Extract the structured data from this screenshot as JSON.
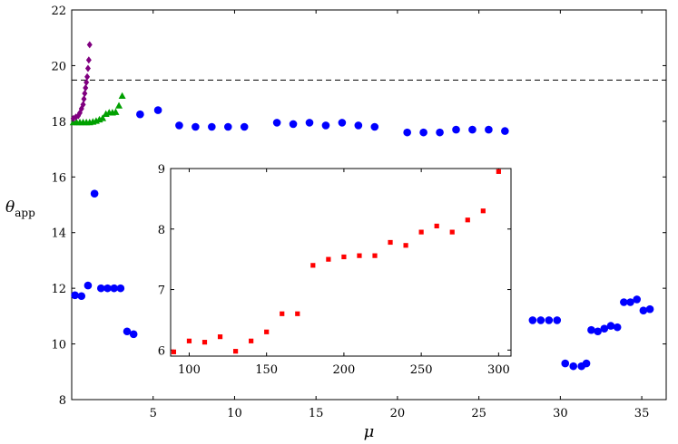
{
  "chart_data": [
    {
      "type": "scatter",
      "xlabel": "μ",
      "ylabel": "θ",
      "ylabel_subscript": "app",
      "xlim": [
        0,
        36.5
      ],
      "ylim": [
        8,
        22
      ],
      "xticks": [
        5,
        10,
        15,
        20,
        25,
        30,
        35
      ],
      "xtick_labels": [
        "5",
        "10",
        "15",
        "20",
        "25",
        "30",
        "35"
      ],
      "yticks": [
        8,
        10,
        12,
        14,
        16,
        18,
        20,
        22
      ],
      "ytick_labels": [
        "8",
        "10",
        "12",
        "14",
        "16",
        "18",
        "20",
        "22"
      ],
      "grid": false,
      "reference_line": {
        "y": 19.48,
        "style": "dashed",
        "color": "#000000"
      },
      "series": [
        {
          "marker": "circle",
          "color": "#0000ff",
          "points": [
            [
              0.2,
              11.75
            ],
            [
              0.6,
              11.72
            ],
            [
              1.0,
              12.1
            ],
            [
              1.4,
              15.4
            ],
            [
              1.8,
              12.0
            ],
            [
              2.2,
              12.0
            ],
            [
              2.6,
              12.0
            ],
            [
              3.0,
              12.0
            ],
            [
              3.4,
              10.45
            ],
            [
              3.8,
              10.35
            ],
            [
              4.2,
              18.25
            ],
            [
              5.3,
              18.4
            ],
            [
              6.6,
              17.85
            ],
            [
              7.6,
              17.8
            ],
            [
              8.6,
              17.8
            ],
            [
              9.6,
              17.8
            ],
            [
              10.6,
              17.8
            ],
            [
              12.6,
              17.95
            ],
            [
              13.6,
              17.9
            ],
            [
              14.6,
              17.95
            ],
            [
              15.6,
              17.85
            ],
            [
              16.6,
              17.95
            ],
            [
              17.6,
              17.85
            ],
            [
              18.6,
              17.8
            ],
            [
              20.6,
              17.6
            ],
            [
              21.6,
              17.6
            ],
            [
              22.6,
              17.6
            ],
            [
              23.6,
              17.7
            ],
            [
              24.6,
              17.7
            ],
            [
              25.6,
              17.7
            ],
            [
              26.6,
              17.65
            ],
            [
              28.3,
              10.85
            ],
            [
              28.8,
              10.85
            ],
            [
              29.3,
              10.85
            ],
            [
              29.8,
              10.85
            ],
            [
              30.3,
              9.3
            ],
            [
              30.8,
              9.2
            ],
            [
              31.3,
              9.2
            ],
            [
              31.6,
              9.3
            ],
            [
              31.9,
              10.5
            ],
            [
              32.3,
              10.45
            ],
            [
              32.7,
              10.55
            ],
            [
              33.1,
              10.65
            ],
            [
              33.5,
              10.6
            ],
            [
              33.9,
              11.5
            ],
            [
              34.3,
              11.5
            ],
            [
              34.7,
              11.6
            ],
            [
              35.1,
              11.2
            ],
            [
              35.5,
              11.25
            ]
          ]
        },
        {
          "marker": "triangle",
          "color": "#00a000",
          "points": [
            [
              0.1,
              17.95
            ],
            [
              0.3,
              17.95
            ],
            [
              0.5,
              17.95
            ],
            [
              0.7,
              17.95
            ],
            [
              0.9,
              17.95
            ],
            [
              1.1,
              17.95
            ],
            [
              1.3,
              17.97
            ],
            [
              1.5,
              18.0
            ],
            [
              1.7,
              18.05
            ],
            [
              1.9,
              18.1
            ],
            [
              2.1,
              18.25
            ],
            [
              2.3,
              18.3
            ],
            [
              2.5,
              18.3
            ],
            [
              2.7,
              18.32
            ],
            [
              2.9,
              18.55
            ],
            [
              3.1,
              18.9
            ]
          ]
        },
        {
          "marker": "diamond",
          "color": "#800080",
          "points": [
            [
              0.1,
              18.1
            ],
            [
              0.25,
              18.15
            ],
            [
              0.4,
              18.2
            ],
            [
              0.5,
              18.3
            ],
            [
              0.6,
              18.45
            ],
            [
              0.7,
              18.6
            ],
            [
              0.75,
              18.8
            ],
            [
              0.8,
              19.0
            ],
            [
              0.85,
              19.2
            ],
            [
              0.9,
              19.4
            ],
            [
              0.95,
              19.6
            ],
            [
              1.0,
              19.9
            ],
            [
              1.05,
              20.2
            ],
            [
              1.1,
              20.75
            ]
          ]
        }
      ]
    },
    {
      "type": "scatter",
      "inset": true,
      "xlim": [
        88,
        308
      ],
      "ylim": [
        5.9,
        9.0
      ],
      "xticks": [
        100,
        150,
        200,
        250,
        300
      ],
      "xtick_labels": [
        "100",
        "150",
        "200",
        "250",
        "300"
      ],
      "yticks": [
        6,
        7,
        8,
        9
      ],
      "ytick_labels": [
        "6",
        "7",
        "8",
        "9"
      ],
      "grid": false,
      "series": [
        {
          "marker": "square",
          "color": "#ff0000",
          "points": [
            [
              90,
              5.97
            ],
            [
              100,
              6.15
            ],
            [
              110,
              6.13
            ],
            [
              120,
              6.22
            ],
            [
              130,
              5.98
            ],
            [
              140,
              6.15
            ],
            [
              150,
              6.3
            ],
            [
              160,
              6.6
            ],
            [
              170,
              6.6
            ],
            [
              180,
              7.4
            ],
            [
              190,
              7.5
            ],
            [
              200,
              7.54
            ],
            [
              210,
              7.56
            ],
            [
              220,
              7.56
            ],
            [
              230,
              7.78
            ],
            [
              240,
              7.73
            ],
            [
              250,
              7.95
            ],
            [
              260,
              8.05
            ],
            [
              270,
              7.95
            ],
            [
              280,
              8.15
            ],
            [
              290,
              8.3
            ],
            [
              300,
              8.95
            ]
          ]
        }
      ]
    }
  ]
}
